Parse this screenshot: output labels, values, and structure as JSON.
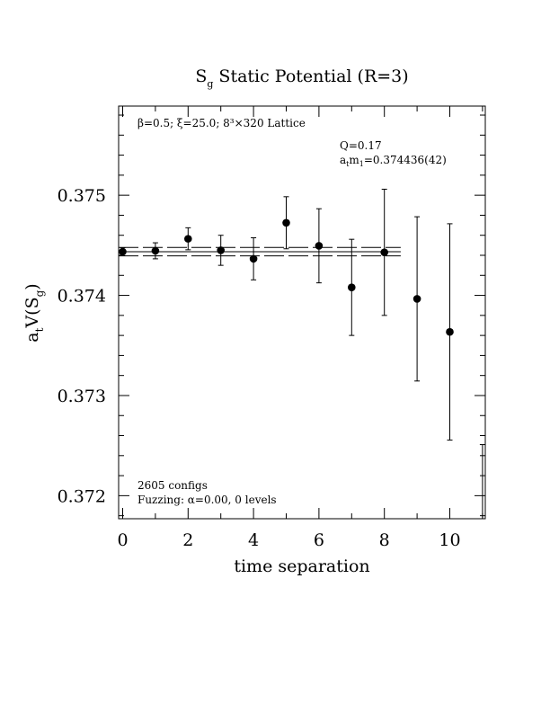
{
  "chart_data": {
    "type": "scatter",
    "title_main": "S",
    "title_sub": "g",
    "title_rest": " Static Potential (R=3)",
    "xlabel": "time separation",
    "ylabel_main": "a",
    "ylabel_sub1": "t",
    "ylabel_mid": "V(S",
    "ylabel_sub2": "g",
    "ylabel_end": ")",
    "xlim": [
      0,
      11
    ],
    "ylim": [
      0.37177,
      0.37589
    ],
    "x_ticks": [
      0,
      2,
      4,
      6,
      8,
      10
    ],
    "y_ticks": [
      0.372,
      0.373,
      0.374,
      0.375
    ],
    "y_tick_labels": [
      "0.372",
      "0.373",
      "0.374",
      "0.375"
    ],
    "points": [
      {
        "x": 0,
        "y": 0.374436,
        "err": 4e-05
      },
      {
        "x": 1,
        "y": 0.374445,
        "err": 8e-05
      },
      {
        "x": 2,
        "y": 0.374565,
        "err": 0.00011
      },
      {
        "x": 3,
        "y": 0.37445,
        "err": 0.00015
      },
      {
        "x": 4,
        "y": 0.374365,
        "err": 0.00021
      },
      {
        "x": 5,
        "y": 0.374725,
        "err": 0.00026
      },
      {
        "x": 6,
        "y": 0.374495,
        "err": 0.00037
      },
      {
        "x": 7,
        "y": 0.37408,
        "err": 0.00048
      },
      {
        "x": 8,
        "y": 0.37443,
        "err": 0.00063
      },
      {
        "x": 9,
        "y": 0.373965,
        "err": 0.00082
      },
      {
        "x": 10,
        "y": 0.373635,
        "err": 0.00108
      }
    ],
    "fit": {
      "value": 0.374436,
      "err": 4.2e-05,
      "x_range": [
        0,
        8.5
      ]
    },
    "edge_errorbar": {
      "x": 11,
      "y_high": 0.37251,
      "y_low": 0.37177
    },
    "annotations": {
      "lattice": "β=0.5; ξ=25.0; 8³×320 Lattice",
      "q": "Q=0.17",
      "mass_main": "a",
      "mass_sub1": "t",
      "mass_mid": "m",
      "mass_sub2": "1",
      "mass_rest": "=0.374436(42)",
      "configs": "2605 configs",
      "fuzzing": "Fuzzing: α=0.00, 0 levels"
    }
  }
}
